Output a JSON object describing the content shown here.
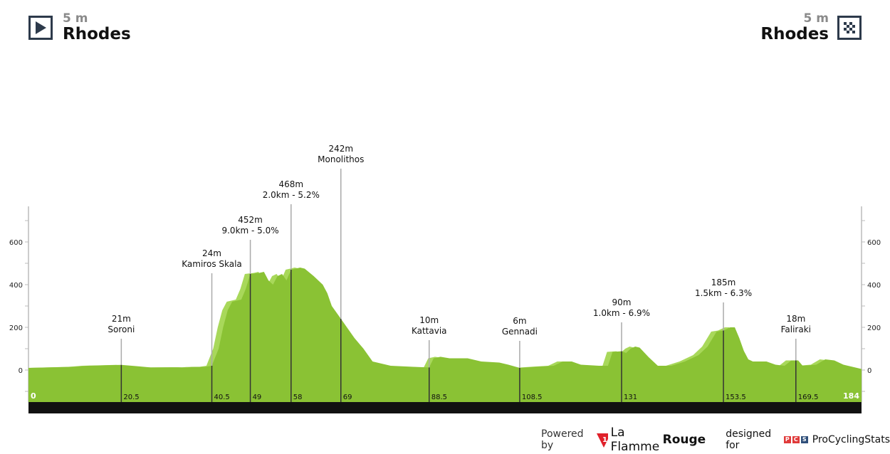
{
  "start": {
    "elevation": "5 m",
    "city": "Rhodes",
    "icon": "play-start-icon"
  },
  "finish": {
    "elevation": "5 m",
    "city": "Rhodes",
    "icon": "checkered-flag-icon"
  },
  "footer": {
    "powered_by": "Powered by",
    "brand_light": "La Flamme",
    "brand_bold": "Rouge",
    "designed_for": "designed for",
    "pcs_letters": [
      "P",
      "C",
      "S"
    ],
    "pcs_name": "ProCyclingStats"
  },
  "colors": {
    "profile_dark": "#8ac234",
    "profile_light": "#a8d85a",
    "bar": "#111111",
    "pcs_red": "#e03a3a",
    "pcs_blue": "#2f4f7a"
  },
  "chart_data": {
    "type": "area",
    "xlabel": "",
    "ylabel": "",
    "xlim": [
      0,
      184
    ],
    "ylim": [
      -150,
      780
    ],
    "yticks": [
      0,
      200,
      400,
      600
    ],
    "x_start_label": "0",
    "x_end_label": "184",
    "profile": [
      [
        0,
        10
      ],
      [
        10,
        15
      ],
      [
        13,
        20
      ],
      [
        20.5,
        24
      ],
      [
        24,
        18
      ],
      [
        27,
        12
      ],
      [
        33,
        13
      ],
      [
        35,
        12
      ],
      [
        36,
        14
      ],
      [
        38,
        15
      ],
      [
        39,
        15
      ],
      [
        40.5,
        20
      ],
      [
        42,
        100
      ],
      [
        43,
        200
      ],
      [
        44,
        280
      ],
      [
        45,
        320
      ],
      [
        47,
        330
      ],
      [
        48,
        380
      ],
      [
        49,
        450
      ],
      [
        51,
        455
      ],
      [
        52,
        460
      ],
      [
        53,
        420
      ],
      [
        54,
        400
      ],
      [
        55,
        440
      ],
      [
        56,
        450
      ],
      [
        57,
        420
      ],
      [
        58,
        470
      ],
      [
        60,
        480
      ],
      [
        61,
        475
      ],
      [
        63,
        440
      ],
      [
        65,
        400
      ],
      [
        66,
        360
      ],
      [
        67,
        300
      ],
      [
        69,
        240
      ],
      [
        72,
        150
      ],
      [
        74,
        100
      ],
      [
        76,
        40
      ],
      [
        80,
        20
      ],
      [
        85,
        15
      ],
      [
        88.5,
        12
      ],
      [
        89.5,
        55
      ],
      [
        91,
        62
      ],
      [
        93,
        55
      ],
      [
        97,
        55
      ],
      [
        100,
        40
      ],
      [
        104,
        35
      ],
      [
        106,
        25
      ],
      [
        108.5,
        10
      ],
      [
        112,
        15
      ],
      [
        116,
        20
      ],
      [
        118,
        40
      ],
      [
        120,
        40
      ],
      [
        122,
        25
      ],
      [
        126,
        20
      ],
      [
        128,
        20
      ],
      [
        129,
        85
      ],
      [
        131,
        88
      ],
      [
        132,
        80
      ],
      [
        133,
        100
      ],
      [
        134,
        110
      ],
      [
        135,
        105
      ],
      [
        137,
        60
      ],
      [
        139,
        20
      ],
      [
        142,
        20
      ],
      [
        145,
        40
      ],
      [
        148,
        70
      ],
      [
        150,
        110
      ],
      [
        152,
        180
      ],
      [
        153.5,
        185
      ],
      [
        155,
        200
      ],
      [
        156,
        200
      ],
      [
        157,
        150
      ],
      [
        158,
        90
      ],
      [
        159,
        50
      ],
      [
        160,
        40
      ],
      [
        163,
        40
      ],
      [
        165,
        25
      ],
      [
        167,
        20
      ],
      [
        168.5,
        45
      ],
      [
        170,
        45
      ],
      [
        171,
        20
      ],
      [
        174,
        25
      ],
      [
        176,
        50
      ],
      [
        178,
        45
      ],
      [
        180,
        25
      ],
      [
        184,
        5
      ]
    ],
    "markers": [
      {
        "km": 20.5,
        "km_label": "20.5",
        "lines": [
          "21m",
          "Soroni"
        ]
      },
      {
        "km": 40.5,
        "km_label": "40.5",
        "lines": [
          "24m",
          "Kamiros Skala"
        ]
      },
      {
        "km": 49,
        "km_label": "49",
        "lines": [
          "452m",
          "9.0km - 5.0%"
        ]
      },
      {
        "km": 58,
        "km_label": "58",
        "lines": [
          "468m",
          "2.0km - 5.2%"
        ]
      },
      {
        "km": 69,
        "km_label": "69",
        "lines": [
          "242m",
          "Monolithos"
        ]
      },
      {
        "km": 88.5,
        "km_label": "88.5",
        "lines": [
          "10m",
          "Kattavia"
        ]
      },
      {
        "km": 108.5,
        "km_label": "108.5",
        "lines": [
          "6m",
          "Gennadi"
        ]
      },
      {
        "km": 131,
        "km_label": "131",
        "lines": [
          "90m",
          "1.0km - 6.9%"
        ]
      },
      {
        "km": 153.5,
        "km_label": "153.5",
        "lines": [
          "185m",
          "1.5km - 6.3%"
        ]
      },
      {
        "km": 169.5,
        "km_label": "169.5",
        "lines": [
          "18m",
          "Faliraki"
        ]
      }
    ]
  }
}
